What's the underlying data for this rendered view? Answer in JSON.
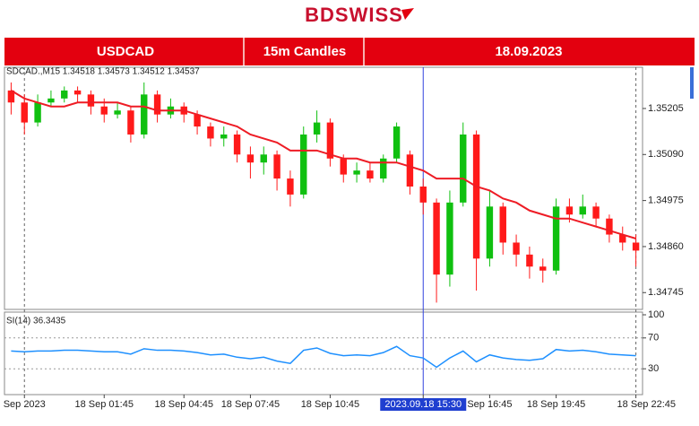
{
  "header": {
    "logo": "BDSWISS",
    "symbol": "USDCAD",
    "timeframe": "15m Candles",
    "date": "18.09.2023"
  },
  "chart_data": {
    "type": "candlestick",
    "info": "SDCAD.,M15  1.34518 1.34573 1.34512 1.34537",
    "categories": [
      null,
      "Sep 2023",
      null,
      null,
      null,
      null,
      null,
      "18 Sep 01:45",
      null,
      null,
      null,
      null,
      null,
      "18 Sep 04:45",
      null,
      null,
      null,
      null,
      "18 Sep 07:45",
      null,
      null,
      null,
      null,
      null,
      "18 Sep 10:45",
      null,
      null,
      null,
      null,
      null,
      null,
      "2023.09.18 15:30",
      null,
      null,
      null,
      null,
      "Sep 16:45",
      null,
      null,
      null,
      null,
      "18 Sep 19:45",
      null,
      null,
      null,
      null,
      null,
      "18 Sep 22:45"
    ],
    "series": [
      {
        "name": "USDCAD",
        "up_color": "#10c010",
        "down_color": "#ff1a1a",
        "open": [
          1.3525,
          1.3522,
          1.3517,
          1.3522,
          1.3523,
          1.3525,
          1.3524,
          1.3521,
          1.3519,
          1.352,
          1.3514,
          1.3524,
          1.3519,
          1.3521,
          1.3519,
          1.3516,
          1.3513,
          1.3514,
          1.3509,
          1.3507,
          1.3509,
          1.3503,
          1.3499,
          1.3514,
          1.3517,
          1.3508,
          1.3504,
          1.3505,
          1.3503,
          1.3508,
          1.3509,
          1.3501,
          1.3497,
          1.3479,
          1.3497,
          1.3514,
          1.3483,
          1.3496,
          1.3487,
          1.3484,
          1.3481,
          1.348,
          1.3496,
          1.3494,
          1.3496,
          1.3493,
          1.3489,
          1.3487
        ],
        "high": [
          1.3527,
          1.3524,
          1.3524,
          1.3525,
          1.3526,
          1.3526,
          1.3525,
          1.3523,
          1.3522,
          1.3521,
          1.3527,
          1.3525,
          1.3523,
          1.3522,
          1.352,
          1.3517,
          1.3516,
          1.3515,
          1.3511,
          1.3511,
          1.351,
          1.3505,
          1.3516,
          1.352,
          1.3518,
          1.3509,
          1.3507,
          1.3507,
          1.3509,
          1.3517,
          1.351,
          1.3503,
          1.3498,
          1.35,
          1.3517,
          1.3515,
          1.35,
          1.3497,
          1.3489,
          1.3486,
          1.3483,
          1.3498,
          1.3498,
          1.3499,
          1.3497,
          1.3494,
          1.3491,
          1.3489
        ],
        "low": [
          1.3519,
          1.3514,
          1.3516,
          1.3521,
          1.3522,
          1.3522,
          1.3519,
          1.3517,
          1.3518,
          1.3512,
          1.3513,
          1.3517,
          1.3518,
          1.3517,
          1.3514,
          1.3511,
          1.3511,
          1.3507,
          1.3503,
          1.3504,
          1.35,
          1.3496,
          1.3498,
          1.3512,
          1.3506,
          1.3502,
          1.3502,
          1.3502,
          1.3502,
          1.3507,
          1.3499,
          1.3494,
          1.3472,
          1.3476,
          1.3496,
          1.3475,
          1.3481,
          1.3484,
          1.3481,
          1.3478,
          1.3477,
          1.3479,
          1.3492,
          1.3493,
          1.3491,
          1.3487,
          1.3485,
          1.3481
        ],
        "close": [
          1.3522,
          1.3517,
          1.3522,
          1.3523,
          1.3525,
          1.3524,
          1.3521,
          1.3519,
          1.352,
          1.3514,
          1.3524,
          1.3519,
          1.3521,
          1.3519,
          1.3516,
          1.3513,
          1.3514,
          1.3509,
          1.3507,
          1.3509,
          1.3503,
          1.3499,
          1.3514,
          1.3517,
          1.3508,
          1.3504,
          1.3505,
          1.3503,
          1.3508,
          1.3516,
          1.3501,
          1.3497,
          1.3479,
          1.3497,
          1.3514,
          1.3483,
          1.3496,
          1.3487,
          1.3484,
          1.3481,
          1.348,
          1.3496,
          1.3494,
          1.3496,
          1.3493,
          1.3489,
          1.3487,
          1.3485
        ]
      },
      {
        "name": "MA",
        "color": "#ee1c25",
        "values": [
          1.3525,
          1.3523,
          1.3522,
          1.3521,
          1.3521,
          1.3522,
          1.3522,
          1.3522,
          1.3522,
          1.3521,
          1.3521,
          1.352,
          1.352,
          1.352,
          1.3519,
          1.3518,
          1.3517,
          1.3516,
          1.3514,
          1.3513,
          1.3512,
          1.351,
          1.351,
          1.351,
          1.3509,
          1.3508,
          1.3508,
          1.3507,
          1.3507,
          1.3507,
          1.3506,
          1.3505,
          1.3503,
          1.3503,
          1.3503,
          1.3501,
          1.35,
          1.3498,
          1.3497,
          1.3495,
          1.3494,
          1.3493,
          1.3493,
          1.3492,
          1.3491,
          1.349,
          1.3489,
          1.3488
        ]
      }
    ],
    "ylim": [
      1.34703,
      1.35308
    ],
    "yticks": [
      1.35205,
      {
        "value": 1.3509,
        "label": "1.35090"
      },
      1.34975,
      {
        "value": 1.3486,
        "label": "1.34860"
      },
      1.34745
    ],
    "indicator": {
      "label": "SI(14) 36.3435",
      "color": "#1e90ff",
      "values": [
        53,
        52,
        53,
        53,
        54,
        54,
        53,
        52,
        52,
        49,
        56,
        54,
        54,
        53,
        51,
        48,
        49,
        45,
        43,
        45,
        40,
        37,
        54,
        57,
        50,
        47,
        48,
        47,
        51,
        59,
        47,
        44,
        32,
        44,
        53,
        39,
        48,
        44,
        42,
        41,
        43,
        55,
        53,
        54,
        52,
        49,
        48,
        47
      ],
      "ylim": [
        0,
        100
      ],
      "yticks": [
        100,
        70,
        30
      ],
      "levels": [
        70,
        30
      ]
    }
  }
}
